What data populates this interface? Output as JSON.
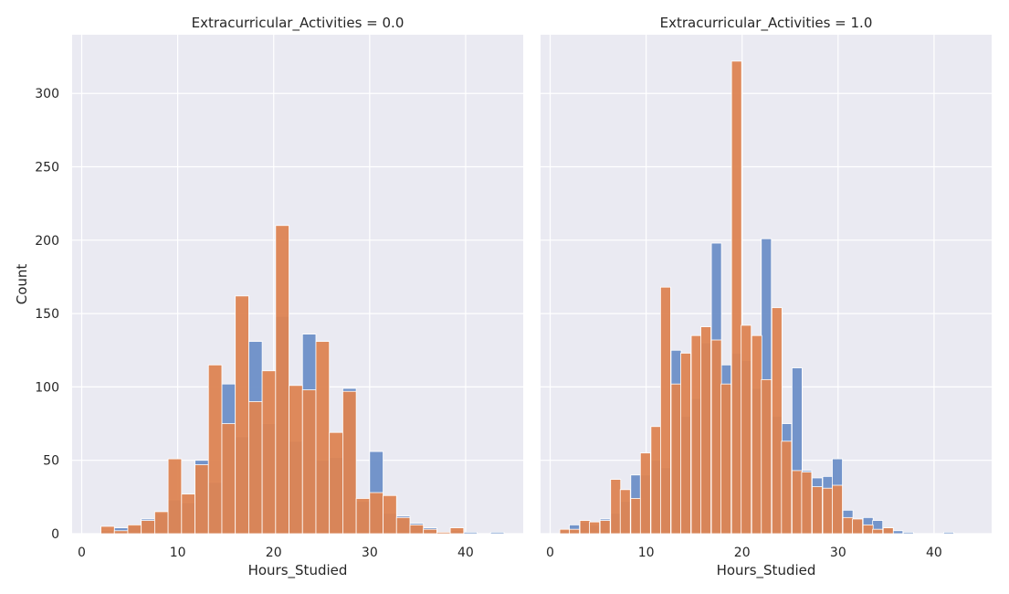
{
  "chart_data": [
    {
      "type": "bar",
      "title": "Extracurricular_Activities = 0.0",
      "xlabel": "Hours_Studied",
      "ylabel": "Count",
      "xlim": [
        -1,
        46
      ],
      "ylim": [
        0,
        340
      ],
      "xticks": [
        0,
        10,
        20,
        30,
        40
      ],
      "yticks": [
        0,
        50,
        100,
        150,
        200,
        250,
        300
      ],
      "grid": true,
      "bin_width": 1.4,
      "series": [
        {
          "color": "#6d8fc7",
          "bins": [
            {
              "x": 2.0,
              "value": 2
            },
            {
              "x": 3.4,
              "value": 4
            },
            {
              "x": 4.8,
              "value": 5
            },
            {
              "x": 6.2,
              "value": 10
            },
            {
              "x": 7.6,
              "value": 14
            },
            {
              "x": 9.0,
              "value": 23
            },
            {
              "x": 10.4,
              "value": 21
            },
            {
              "x": 11.8,
              "value": 50
            },
            {
              "x": 13.2,
              "value": 35
            },
            {
              "x": 14.6,
              "value": 102
            },
            {
              "x": 16.0,
              "value": 66
            },
            {
              "x": 17.4,
              "value": 131
            },
            {
              "x": 18.8,
              "value": 75
            },
            {
              "x": 20.2,
              "value": 148
            },
            {
              "x": 21.6,
              "value": 63
            },
            {
              "x": 23.0,
              "value": 136
            },
            {
              "x": 24.4,
              "value": 50
            },
            {
              "x": 25.8,
              "value": 52
            },
            {
              "x": 27.2,
              "value": 99
            },
            {
              "x": 28.6,
              "value": 22
            },
            {
              "x": 30.0,
              "value": 56
            },
            {
              "x": 31.4,
              "value": 14
            },
            {
              "x": 32.8,
              "value": 12
            },
            {
              "x": 34.2,
              "value": 7
            },
            {
              "x": 35.6,
              "value": 4
            },
            {
              "x": 37.0,
              "value": 1
            },
            {
              "x": 38.4,
              "value": 2
            },
            {
              "x": 39.8,
              "value": 1
            },
            {
              "x": 41.2,
              "value": 0
            },
            {
              "x": 42.6,
              "value": 1
            }
          ]
        },
        {
          "color": "#dd8452",
          "bins": [
            {
              "x": 2.0,
              "value": 5
            },
            {
              "x": 3.4,
              "value": 2
            },
            {
              "x": 4.8,
              "value": 6
            },
            {
              "x": 6.2,
              "value": 9
            },
            {
              "x": 7.6,
              "value": 15
            },
            {
              "x": 9.0,
              "value": 51
            },
            {
              "x": 10.4,
              "value": 27
            },
            {
              "x": 11.8,
              "value": 47
            },
            {
              "x": 13.2,
              "value": 115
            },
            {
              "x": 14.6,
              "value": 75
            },
            {
              "x": 16.0,
              "value": 162
            },
            {
              "x": 17.4,
              "value": 90
            },
            {
              "x": 18.8,
              "value": 111
            },
            {
              "x": 20.2,
              "value": 210
            },
            {
              "x": 21.6,
              "value": 101
            },
            {
              "x": 23.0,
              "value": 98
            },
            {
              "x": 24.4,
              "value": 131
            },
            {
              "x": 25.8,
              "value": 69
            },
            {
              "x": 27.2,
              "value": 97
            },
            {
              "x": 28.6,
              "value": 24
            },
            {
              "x": 30.0,
              "value": 28
            },
            {
              "x": 31.4,
              "value": 26
            },
            {
              "x": 32.8,
              "value": 11
            },
            {
              "x": 34.2,
              "value": 6
            },
            {
              "x": 35.6,
              "value": 3
            },
            {
              "x": 37.0,
              "value": 1
            },
            {
              "x": 38.4,
              "value": 4
            },
            {
              "x": 39.8,
              "value": 0
            },
            {
              "x": 41.2,
              "value": 0
            },
            {
              "x": 42.6,
              "value": 0
            }
          ]
        }
      ]
    },
    {
      "type": "bar",
      "title": "Extracurricular_Activities = 1.0",
      "xlabel": "Hours_Studied",
      "ylabel": "",
      "xlim": [
        -1,
        46
      ],
      "ylim": [
        0,
        340
      ],
      "xticks": [
        0,
        10,
        20,
        30,
        40
      ],
      "yticks": [
        0,
        50,
        100,
        150,
        200,
        250,
        300
      ],
      "grid": true,
      "bin_width": 1.05,
      "series": [
        {
          "color": "#6d8fc7",
          "bins": [
            {
              "x": 1.0,
              "value": 2
            },
            {
              "x": 2.0,
              "value": 6
            },
            {
              "x": 3.1,
              "value": 8
            },
            {
              "x": 4.1,
              "value": 6
            },
            {
              "x": 5.2,
              "value": 10
            },
            {
              "x": 6.3,
              "value": 14
            },
            {
              "x": 7.3,
              "value": 22
            },
            {
              "x": 8.4,
              "value": 40
            },
            {
              "x": 9.4,
              "value": 40
            },
            {
              "x": 10.5,
              "value": 50
            },
            {
              "x": 11.5,
              "value": 45
            },
            {
              "x": 12.6,
              "value": 125
            },
            {
              "x": 13.6,
              "value": 80
            },
            {
              "x": 14.7,
              "value": 92
            },
            {
              "x": 15.7,
              "value": 130
            },
            {
              "x": 16.8,
              "value": 198
            },
            {
              "x": 17.8,
              "value": 115
            },
            {
              "x": 18.9,
              "value": 123
            },
            {
              "x": 19.9,
              "value": 118
            },
            {
              "x": 21.0,
              "value": 99
            },
            {
              "x": 22.0,
              "value": 201
            },
            {
              "x": 23.1,
              "value": 80
            },
            {
              "x": 24.1,
              "value": 75
            },
            {
              "x": 25.2,
              "value": 113
            },
            {
              "x": 26.2,
              "value": 43
            },
            {
              "x": 27.3,
              "value": 38
            },
            {
              "x": 28.4,
              "value": 39
            },
            {
              "x": 29.4,
              "value": 51
            },
            {
              "x": 30.5,
              "value": 16
            },
            {
              "x": 31.5,
              "value": 10
            },
            {
              "x": 32.6,
              "value": 11
            },
            {
              "x": 33.6,
              "value": 9
            },
            {
              "x": 34.7,
              "value": 4
            },
            {
              "x": 35.7,
              "value": 2
            },
            {
              "x": 36.8,
              "value": 1
            },
            {
              "x": 41.0,
              "value": 1
            }
          ]
        },
        {
          "color": "#dd8452",
          "bins": [
            {
              "x": 1.0,
              "value": 3
            },
            {
              "x": 2.0,
              "value": 3
            },
            {
              "x": 3.1,
              "value": 9
            },
            {
              "x": 4.1,
              "value": 8
            },
            {
              "x": 5.2,
              "value": 9
            },
            {
              "x": 6.3,
              "value": 37
            },
            {
              "x": 7.3,
              "value": 30
            },
            {
              "x": 8.4,
              "value": 24
            },
            {
              "x": 9.4,
              "value": 55
            },
            {
              "x": 10.5,
              "value": 73
            },
            {
              "x": 11.5,
              "value": 168
            },
            {
              "x": 12.6,
              "value": 102
            },
            {
              "x": 13.6,
              "value": 123
            },
            {
              "x": 14.7,
              "value": 135
            },
            {
              "x": 15.7,
              "value": 141
            },
            {
              "x": 16.8,
              "value": 132
            },
            {
              "x": 17.8,
              "value": 102
            },
            {
              "x": 18.9,
              "value": 322
            },
            {
              "x": 19.9,
              "value": 142
            },
            {
              "x": 21.0,
              "value": 135
            },
            {
              "x": 22.0,
              "value": 105
            },
            {
              "x": 23.1,
              "value": 154
            },
            {
              "x": 24.1,
              "value": 63
            },
            {
              "x": 25.2,
              "value": 43
            },
            {
              "x": 26.2,
              "value": 42
            },
            {
              "x": 27.3,
              "value": 32
            },
            {
              "x": 28.4,
              "value": 31
            },
            {
              "x": 29.4,
              "value": 33
            },
            {
              "x": 30.5,
              "value": 11
            },
            {
              "x": 31.5,
              "value": 10
            },
            {
              "x": 32.6,
              "value": 6
            },
            {
              "x": 33.6,
              "value": 3
            },
            {
              "x": 34.7,
              "value": 4
            },
            {
              "x": 35.7,
              "value": 0
            },
            {
              "x": 36.8,
              "value": 0
            },
            {
              "x": 41.0,
              "value": 0
            }
          ]
        }
      ]
    }
  ]
}
